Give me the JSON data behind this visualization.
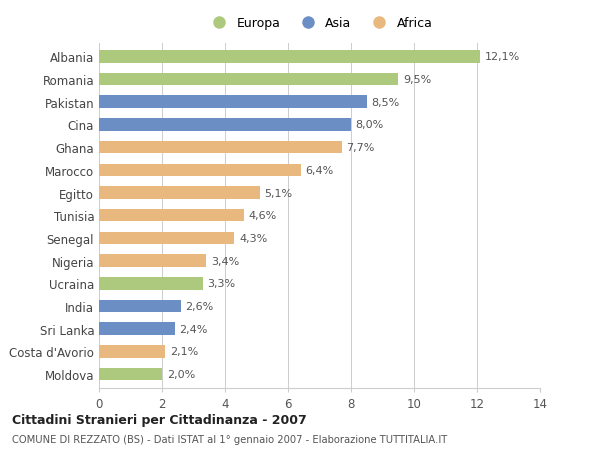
{
  "countries": [
    "Albania",
    "Romania",
    "Pakistan",
    "Cina",
    "Ghana",
    "Marocco",
    "Egitto",
    "Tunisia",
    "Senegal",
    "Nigeria",
    "Ucraina",
    "India",
    "Sri Lanka",
    "Costa d'Avorio",
    "Moldova"
  ],
  "values": [
    12.1,
    9.5,
    8.5,
    8.0,
    7.7,
    6.4,
    5.1,
    4.6,
    4.3,
    3.4,
    3.3,
    2.6,
    2.4,
    2.1,
    2.0
  ],
  "labels": [
    "12,1%",
    "9,5%",
    "8,5%",
    "8,0%",
    "7,7%",
    "6,4%",
    "5,1%",
    "4,6%",
    "4,3%",
    "3,4%",
    "3,3%",
    "2,6%",
    "2,4%",
    "2,1%",
    "2,0%"
  ],
  "continents": [
    "Europa",
    "Europa",
    "Asia",
    "Asia",
    "Africa",
    "Africa",
    "Africa",
    "Africa",
    "Africa",
    "Africa",
    "Europa",
    "Asia",
    "Asia",
    "Africa",
    "Europa"
  ],
  "colors": {
    "Europa": "#adc97d",
    "Asia": "#6b8ec4",
    "Africa": "#e8b87e"
  },
  "xlim": [
    0,
    14
  ],
  "xticks": [
    0,
    2,
    4,
    6,
    8,
    10,
    12,
    14
  ],
  "title": "Cittadini Stranieri per Cittadinanza - 2007",
  "subtitle": "COMUNE DI REZZATO (BS) - Dati ISTAT al 1° gennaio 2007 - Elaborazione TUTTITALIA.IT",
  "background_color": "#ffffff",
  "grid_color": "#cccccc",
  "bar_height": 0.55,
  "label_fontsize": 8,
  "ytick_fontsize": 8.5,
  "xtick_fontsize": 8.5
}
